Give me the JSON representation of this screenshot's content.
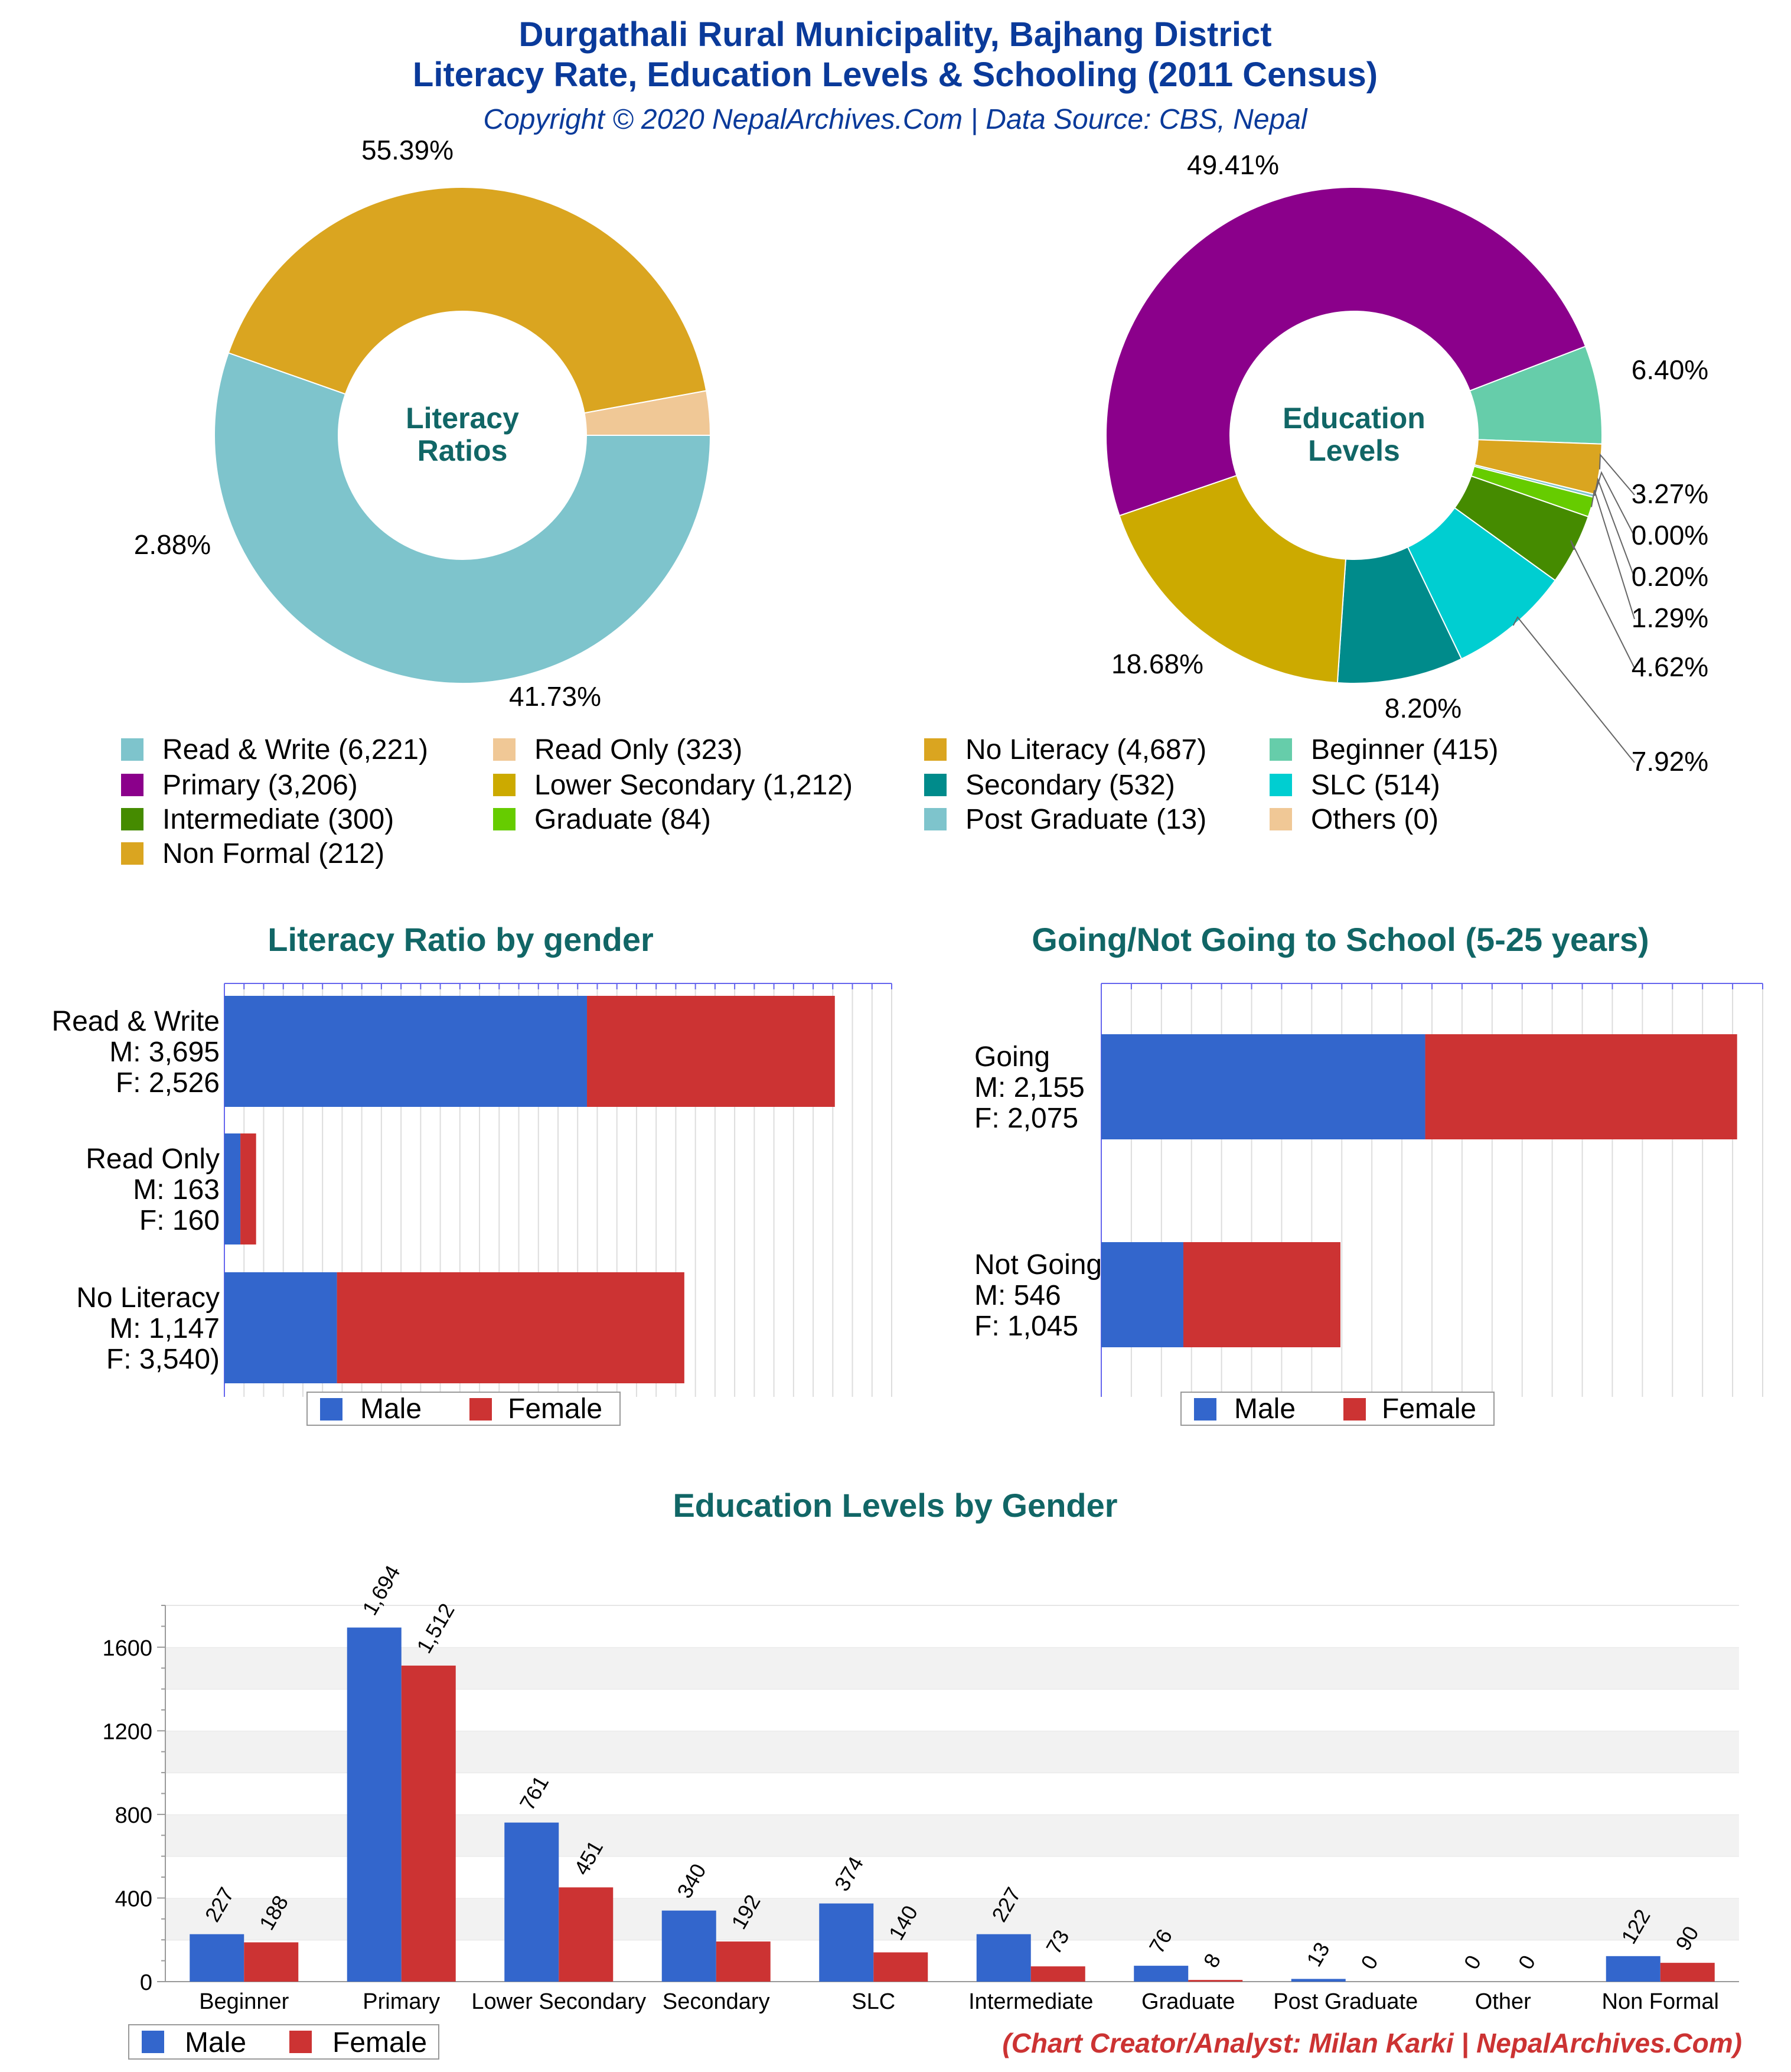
{
  "header": {
    "title_line1": "Durgathali Rural Municipality, Bajhang District",
    "title_line2": "Literacy Rate, Education Levels & Schooling (2011 Census)",
    "subtitle": "Copyright © 2020 NepalArchives.Com | Data Source: CBS, Nepal"
  },
  "colors": {
    "male": "#3366cc",
    "female": "#cc3333",
    "read_write": "#7ec4cc",
    "read_only": "#f0c896",
    "no_literacy": "#daa520",
    "primary": "#8b008b",
    "beginner": "#66cdaa",
    "non_formal": "#daa520",
    "graduate": "#66cc00",
    "post_graduate": "#7ec4cc",
    "intermediate": "#458b00",
    "slc": "#00ced1",
    "secondary": "#008b8b",
    "lower_secondary": "#ccaa00",
    "others": "#f0c896"
  },
  "donut_literacy": {
    "center_line1": "Literacy",
    "center_line2": "Ratios",
    "slices": [
      {
        "name": "Read & Write",
        "value": 6221,
        "label": "55.39%",
        "color": "#7ec4cc"
      },
      {
        "name": "No Literacy",
        "value": 4687,
        "label": "41.73%",
        "color": "#daa520"
      },
      {
        "name": "Read Only",
        "value": 323,
        "label": "2.88%",
        "color": "#f0c896"
      }
    ]
  },
  "donut_education": {
    "center_line1": "Education",
    "center_line2": "Levels",
    "slices": [
      {
        "name": "Primary",
        "value": 3206,
        "label": "49.41%",
        "color": "#8b008b"
      },
      {
        "name": "Beginner",
        "value": 415,
        "label": "6.40%",
        "color": "#66cdaa"
      },
      {
        "name": "Non Formal",
        "value": 212,
        "label": "3.27%",
        "color": "#daa520"
      },
      {
        "name": "Others",
        "value": 0,
        "label": "0.00%",
        "color": "#f0c896"
      },
      {
        "name": "Post Graduate",
        "value": 13,
        "label": "0.20%",
        "color": "#7ec4cc"
      },
      {
        "name": "Graduate",
        "value": 84,
        "label": "1.29%",
        "color": "#66cc00"
      },
      {
        "name": "Intermediate",
        "value": 300,
        "label": "4.62%",
        "color": "#458b00"
      },
      {
        "name": "SLC",
        "value": 514,
        "label": "7.92%",
        "color": "#00ced1"
      },
      {
        "name": "Secondary",
        "value": 532,
        "label": "8.20%",
        "color": "#008b8b"
      },
      {
        "name": "Lower Secondary",
        "value": 1212,
        "label": "18.68%",
        "color": "#ccaa00"
      }
    ]
  },
  "legend_top": [
    {
      "text": "Read & Write (6,221)",
      "color": "#7ec4cc"
    },
    {
      "text": "Read Only (323)",
      "color": "#f0c896"
    },
    {
      "text": "No Literacy (4,687)",
      "color": "#daa520"
    },
    {
      "text": "Beginner (415)",
      "color": "#66cdaa"
    },
    {
      "text": "Primary (3,206)",
      "color": "#8b008b"
    },
    {
      "text": "Lower Secondary (1,212)",
      "color": "#ccaa00"
    },
    {
      "text": "Secondary (532)",
      "color": "#008b8b"
    },
    {
      "text": "SLC (514)",
      "color": "#00ced1"
    },
    {
      "text": "Intermediate (300)",
      "color": "#458b00"
    },
    {
      "text": "Graduate (84)",
      "color": "#66cc00"
    },
    {
      "text": "Post Graduate (13)",
      "color": "#7ec4cc"
    },
    {
      "text": "Others (0)",
      "color": "#f0c896"
    },
    {
      "text": "Non Formal (212)",
      "color": "#daa520"
    }
  ],
  "literacy_gender": {
    "title": "Literacy Ratio by gender",
    "max": 6800,
    "rows": [
      {
        "label1": "Read & Write",
        "label2": "M: 3,695",
        "label3": "F: 2,526",
        "male": 3695,
        "female": 2526
      },
      {
        "label1": "Read Only",
        "label2": "M: 163",
        "label3": "F: 160",
        "male": 163,
        "female": 160
      },
      {
        "label1": "No Literacy",
        "label2": "M: 1,147",
        "label3": "F: 3,540)",
        "male": 1147,
        "female": 3540
      }
    ],
    "legend_male": "Male",
    "legend_female": "Female"
  },
  "school": {
    "title": "Going/Not Going to School (5-25 years)",
    "max": 4400,
    "rows": [
      {
        "label1": "Going",
        "label2": "M: 2,155",
        "label3": "F: 2,075",
        "male": 2155,
        "female": 2075
      },
      {
        "label1": "Not Going",
        "label2": "M: 546",
        "label3": "F: 1,045",
        "male": 546,
        "female": 1045
      }
    ],
    "legend_male": "Male",
    "legend_female": "Female"
  },
  "edu_gender": {
    "title": "Education Levels by Gender",
    "legend_male": "Male",
    "legend_female": "Female"
  },
  "chart_data": [
    {
      "type": "pie",
      "title": "Literacy Ratios",
      "categories": [
        "Read & Write",
        "Read Only",
        "No Literacy"
      ],
      "values": [
        6221,
        323,
        4687
      ]
    },
    {
      "type": "pie",
      "title": "Education Levels",
      "categories": [
        "Primary",
        "Beginner",
        "Non Formal",
        "Others",
        "Post Graduate",
        "Graduate",
        "Intermediate",
        "SLC",
        "Secondary",
        "Lower Secondary"
      ],
      "values": [
        3206,
        415,
        212,
        0,
        13,
        84,
        300,
        514,
        532,
        1212
      ]
    },
    {
      "type": "bar",
      "title": "Literacy Ratio by gender",
      "categories": [
        "Read & Write",
        "Read Only",
        "No Literacy"
      ],
      "series": [
        {
          "name": "Male",
          "values": [
            3695,
            163,
            1147
          ]
        },
        {
          "name": "Female",
          "values": [
            2526,
            160,
            3540
          ]
        }
      ]
    },
    {
      "type": "bar",
      "title": "Going/Not Going to School (5-25 years)",
      "categories": [
        "Going",
        "Not Going"
      ],
      "series": [
        {
          "name": "Male",
          "values": [
            2155,
            546
          ]
        },
        {
          "name": "Female",
          "values": [
            2075,
            1045
          ]
        }
      ]
    },
    {
      "type": "bar",
      "title": "Education Levels by Gender",
      "categories": [
        "Beginner",
        "Primary",
        "Lower Secondary",
        "Secondary",
        "SLC",
        "Intermediate",
        "Graduate",
        "Post Graduate",
        "Other",
        "Non Formal"
      ],
      "series": [
        {
          "name": "Male",
          "values": [
            227,
            1694,
            761,
            340,
            374,
            227,
            76,
            13,
            0,
            122
          ]
        },
        {
          "name": "Female",
          "values": [
            188,
            1512,
            451,
            192,
            140,
            73,
            8,
            0,
            0,
            90
          ]
        }
      ],
      "value_labels": {
        "Male": [
          "227",
          "1,694",
          "761",
          "340",
          "374",
          "227",
          "76",
          "13",
          "0",
          "122"
        ],
        "Female": [
          "188",
          "1,512",
          "451",
          "192",
          "140",
          "73",
          "8",
          "0",
          "0",
          "90"
        ]
      },
      "yticks": [
        "0",
        "400",
        "800",
        "1200",
        "1600"
      ],
      "ylim": [
        0,
        1800
      ]
    }
  ],
  "footer": {
    "credit": "(Chart Creator/Analyst: Milan Karki | NepalArchives.Com)"
  }
}
